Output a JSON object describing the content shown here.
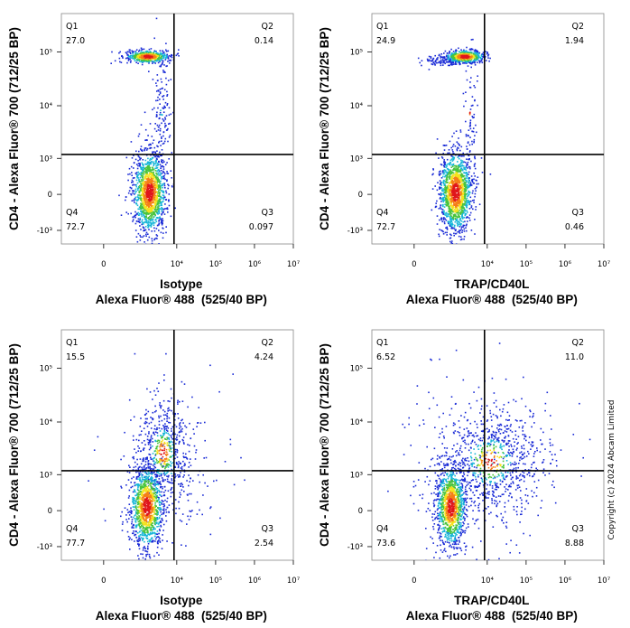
{
  "chart_data": [
    {
      "type": "scatter",
      "x_label": [
        "Isotype",
        "Alexa Fluor® 488  (525/40 BP)"
      ],
      "y_label": "CD4 - Alexa Fluor® 700 (712/25 BP)",
      "xlim": [
        -1600,
        10000000
      ],
      "ylim": [
        -1850,
        520000
      ],
      "xticks": [
        0,
        {
          "value": 10000,
          "label": "10⁴"
        },
        {
          "value": 100000,
          "label": "10⁵"
        },
        {
          "value": 1000000,
          "label": "10⁶"
        },
        {
          "value": 10000000,
          "label": "10⁷"
        }
      ],
      "yticks": [
        {
          "value": 100000,
          "label": "10⁵"
        },
        {
          "value": 10000,
          "label": "10⁴"
        },
        {
          "value": 1000,
          "label": "10³"
        },
        0,
        {
          "value": -1000,
          "label": "-10³"
        }
      ],
      "quadrant_gate": {
        "x": 8500,
        "y": 1200
      },
      "quadrants": {
        "names": [
          "Q1",
          "Q2",
          "Q3",
          "Q4"
        ],
        "values": [
          27.0,
          0.14,
          0.097,
          72.7
        ],
        "value_labels": [
          "27.0",
          "0.14",
          "0.097",
          "72.7"
        ]
      }
    },
    {
      "type": "scatter",
      "x_label": [
        "TRAP/CD40L",
        "Alexa Fluor® 488  (525/40 BP)"
      ],
      "y_label": "CD4 - Alexa Fluor® 700 (712/25 BP)",
      "xlim": [
        -1600,
        10000000
      ],
      "ylim": [
        -1850,
        520000
      ],
      "xticks": [
        0,
        {
          "value": 10000,
          "label": "10⁴"
        },
        {
          "value": 100000,
          "label": "10⁵"
        },
        {
          "value": 1000000,
          "label": "10⁶"
        },
        {
          "value": 10000000,
          "label": "10⁷"
        }
      ],
      "yticks": [
        {
          "value": 100000,
          "label": "10⁵"
        },
        {
          "value": 10000,
          "label": "10⁴"
        },
        {
          "value": 1000,
          "label": "10³"
        },
        0,
        {
          "value": -1000,
          "label": "-10³"
        }
      ],
      "quadrant_gate": {
        "x": 8500,
        "y": 1200
      },
      "quadrants": {
        "names": [
          "Q1",
          "Q2",
          "Q3",
          "Q4"
        ],
        "values": [
          24.9,
          1.94,
          0.46,
          72.7
        ],
        "value_labels": [
          "24.9",
          "1.94",
          "0.46",
          "72.7"
        ]
      }
    },
    {
      "type": "scatter",
      "x_label": [
        "Isotype",
        "Alexa Fluor® 488  (525/40 BP)"
      ],
      "y_label": "CD4 - Alexa Fluor® 700 (712/25 BP)",
      "xlim": [
        -1600,
        10000000
      ],
      "ylim": [
        -1850,
        520000
      ],
      "xticks": [
        0,
        {
          "value": 10000,
          "label": "10⁴"
        },
        {
          "value": 100000,
          "label": "10⁵"
        },
        {
          "value": 1000000,
          "label": "10⁶"
        },
        {
          "value": 10000000,
          "label": "10⁷"
        }
      ],
      "yticks": [
        {
          "value": 100000,
          "label": "10⁵"
        },
        {
          "value": 10000,
          "label": "10⁴"
        },
        {
          "value": 1000,
          "label": "10³"
        },
        0,
        {
          "value": -1000,
          "label": "-10³"
        }
      ],
      "quadrant_gate": {
        "x": 8500,
        "y": 1200
      },
      "quadrants": {
        "names": [
          "Q1",
          "Q2",
          "Q3",
          "Q4"
        ],
        "values": [
          15.5,
          4.24,
          2.54,
          77.7
        ],
        "value_labels": [
          "15.5",
          "4.24",
          "2.54",
          "77.7"
        ]
      }
    },
    {
      "type": "scatter",
      "x_label": [
        "TRAP/CD40L",
        "Alexa Fluor® 488  (525/40 BP)"
      ],
      "y_label": "CD4 - Alexa Fluor® 700 (712/25 BP)",
      "xlim": [
        -1600,
        10000000
      ],
      "ylim": [
        -1850,
        520000
      ],
      "xticks": [
        0,
        {
          "value": 10000,
          "label": "10⁴"
        },
        {
          "value": 100000,
          "label": "10⁵"
        },
        {
          "value": 1000000,
          "label": "10⁶"
        },
        {
          "value": 10000000,
          "label": "10⁷"
        }
      ],
      "yticks": [
        {
          "value": 100000,
          "label": "10⁵"
        },
        {
          "value": 10000,
          "label": "10⁴"
        },
        {
          "value": 1000,
          "label": "10³"
        },
        0,
        {
          "value": -1000,
          "label": "-10³"
        }
      ],
      "quadrant_gate": {
        "x": 8500,
        "y": 1200
      },
      "quadrants": {
        "names": [
          "Q1",
          "Q2",
          "Q3",
          "Q4"
        ],
        "values": [
          6.52,
          11.0,
          8.88,
          73.6
        ],
        "value_labels": [
          "6.52",
          "11.0",
          "8.88",
          "73.6"
        ]
      }
    }
  ],
  "copyright": "Copyright (c) 2024 Abcam Limited"
}
